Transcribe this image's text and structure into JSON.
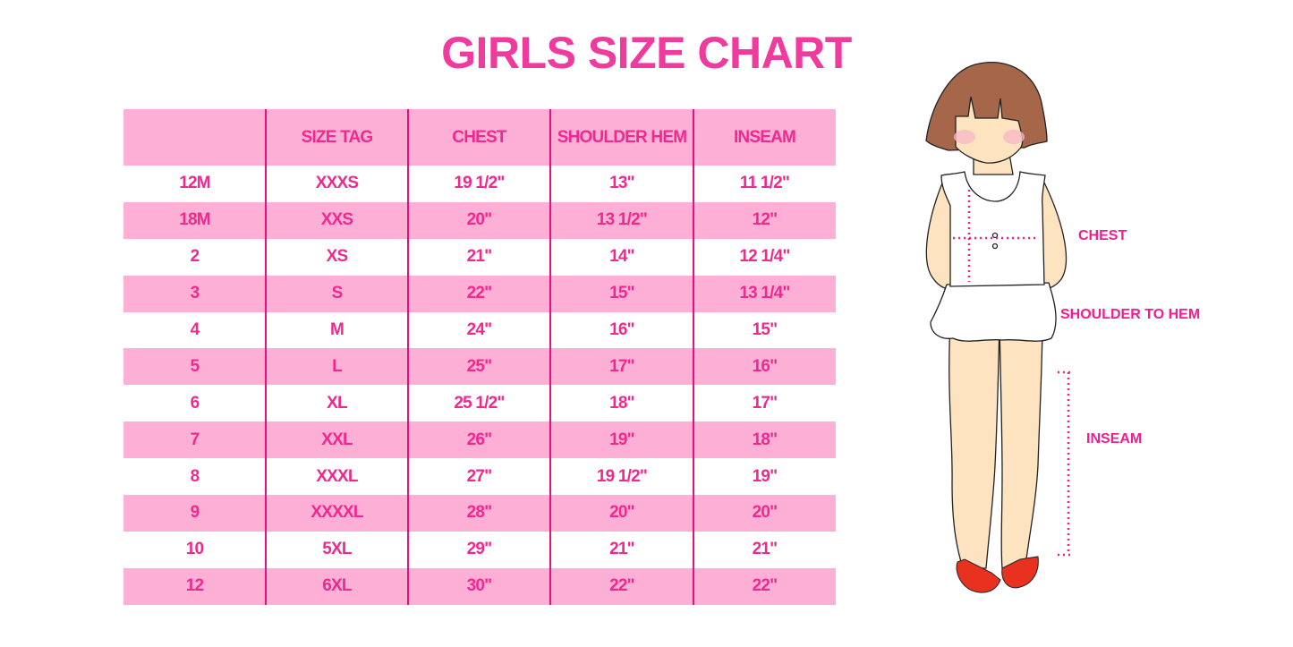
{
  "title": "GIRLS SIZE CHART",
  "table": {
    "headers": [
      "",
      "SIZE TAG",
      "CHEST",
      "SHOULDER HEM",
      "INSEAM"
    ],
    "rows": [
      [
        "12M",
        "XXXS",
        "19 1/2\"",
        "13\"",
        "11 1/2\""
      ],
      [
        "18M",
        "XXS",
        "20\"",
        "13 1/2\"",
        "12\""
      ],
      [
        "2",
        "XS",
        "21\"",
        "14\"",
        "12 1/4\""
      ],
      [
        "3",
        "S",
        "22\"",
        "15\"",
        "13 1/4\""
      ],
      [
        "4",
        "M",
        "24\"",
        "16\"",
        "15\""
      ],
      [
        "5",
        "L",
        "25\"",
        "17\"",
        "16\""
      ],
      [
        "6",
        "XL",
        "25 1/2\"",
        "18\"",
        "17\""
      ],
      [
        "7",
        "XXL",
        "26\"",
        "19\"",
        "18\""
      ],
      [
        "8",
        "XXXL",
        "27\"",
        "19 1/2\"",
        "19\""
      ],
      [
        "9",
        "XXXXL",
        "28\"",
        "20\"",
        "20\""
      ],
      [
        "10",
        "5XL",
        "29\"",
        "21\"",
        "21\""
      ],
      [
        "12",
        "6XL",
        "30\"",
        "22\"",
        "22\""
      ]
    ]
  },
  "figure": {
    "labels": {
      "chest": "CHEST",
      "shoulder_to_hem": "SHOULDER TO HEM",
      "inseam": "INSEAM"
    }
  },
  "colors": {
    "accent": "#ee2a8f",
    "row_pink": "#fdafd5",
    "divider": "#e3127f"
  }
}
